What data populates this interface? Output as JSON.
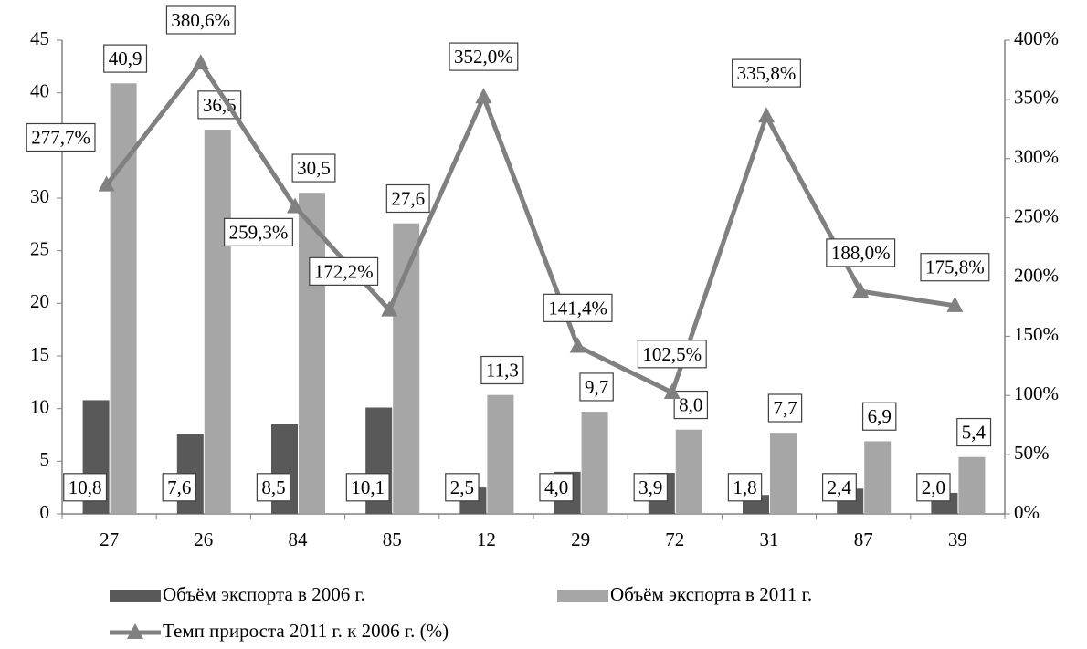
{
  "chart_data": {
    "type": "bar-line",
    "categories": [
      "27",
      "26",
      "84",
      "85",
      "12",
      "29",
      "72",
      "31",
      "87",
      "39"
    ],
    "series": [
      {
        "name": "Объём экспорта в 2006 г.",
        "color": "#595959",
        "type": "bar",
        "values": [
          10.8,
          7.6,
          8.5,
          10.1,
          2.5,
          4.0,
          3.9,
          1.8,
          2.4,
          2.0
        ],
        "value_labels": [
          "10,8",
          "7,6",
          "8,5",
          "10,1",
          "2,5",
          "4,0",
          "3,9",
          "1,8",
          "2,4",
          "2,0"
        ]
      },
      {
        "name": "Объём экспорта в 2011 г.",
        "color": "#a6a6a6",
        "type": "bar",
        "values": [
          40.9,
          36.5,
          30.5,
          27.6,
          11.3,
          9.7,
          8.0,
          7.7,
          6.9,
          5.4
        ],
        "value_labels": [
          "40,9",
          "36,5",
          "30,5",
          "27,6",
          "11,3",
          "9,7",
          "8,0",
          "7,7",
          "6,9",
          "5,4"
        ]
      },
      {
        "name": "Темп прироста 2011 г. к 2006 г. (%)",
        "color": "#808080",
        "type": "line",
        "axis": "y2",
        "values": [
          277.7,
          380.6,
          259.3,
          172.2,
          352.0,
          141.4,
          102.5,
          335.8,
          188.0,
          175.8
        ],
        "value_labels": [
          "277,7%",
          "380,6%",
          "259,3%",
          "172,2%",
          "352,0%",
          "141,4%",
          "102,5%",
          "335,8%",
          "188,0%",
          "175,8%"
        ]
      }
    ],
    "ylim": [
      0,
      45
    ],
    "yticks": [
      0,
      5,
      10,
      15,
      20,
      25,
      30,
      35,
      40,
      45
    ],
    "y2lim": [
      0,
      400
    ],
    "y2ticks": [
      {
        "value": 0,
        "label": "0%"
      },
      {
        "value": 50,
        "label": "50%"
      },
      {
        "value": 100,
        "label": "100%"
      },
      {
        "value": 150,
        "label": "150%"
      },
      {
        "value": 200,
        "label": "200%"
      },
      {
        "value": 250,
        "label": "250%"
      },
      {
        "value": 300,
        "label": "300%"
      },
      {
        "value": 350,
        "label": "350%"
      },
      {
        "value": 400,
        "label": "400%"
      }
    ],
    "grid": false
  }
}
